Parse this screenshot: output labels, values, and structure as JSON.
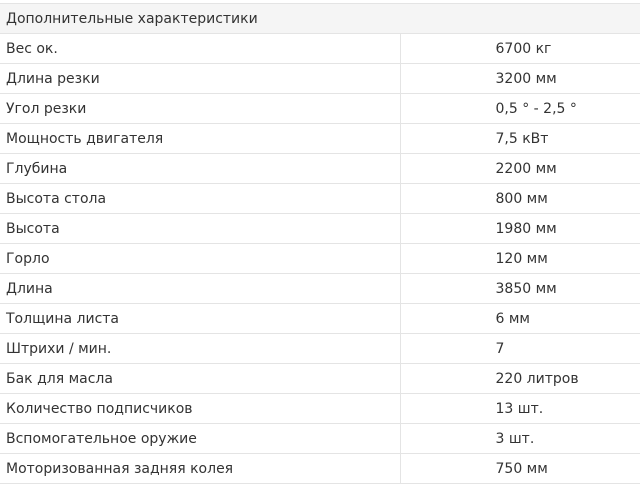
{
  "table": {
    "header": "Дополнительные характеристики",
    "rows": [
      {
        "label": "Вес ок.",
        "value": "6700 кг"
      },
      {
        "label": "Длина резки",
        "value": "3200 мм"
      },
      {
        "label": "Угол резки",
        "value": "0,5 ° - 2,5 °"
      },
      {
        "label": "Мощность двигателя",
        "value": "7,5 кВт"
      },
      {
        "label": "Глубина",
        "value": "2200 мм"
      },
      {
        "label": "Высота стола",
        "value": "800 мм"
      },
      {
        "label": "Высота",
        "value": "1980 мм"
      },
      {
        "label": "Горло",
        "value": "120 мм"
      },
      {
        "label": "Длина",
        "value": "3850 мм"
      },
      {
        "label": "Толщина листа",
        "value": "6 мм"
      },
      {
        "label": "Штрихи / мин.",
        "value": "7"
      },
      {
        "label": "Бак для масла",
        "value": "220 литров"
      },
      {
        "label": "Количество подписчиков",
        "value": "13 шт."
      },
      {
        "label": "Вспомогательное оружие",
        "value": "3 шт."
      },
      {
        "label": "Моторизованная задняя колея",
        "value": "750 мм"
      }
    ]
  }
}
